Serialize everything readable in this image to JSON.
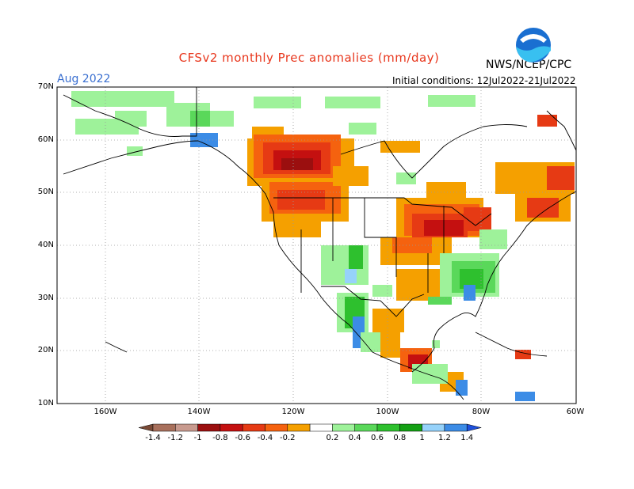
{
  "header": {
    "title": "CFSv2 monthly Prec anomalies (mm/day)",
    "agency": "NWS/NCEP/CPC",
    "month": "Aug 2022",
    "initial_conditions": "Initial conditions: 12Jul2022-21Jul2022",
    "logo_text": "NOAA"
  },
  "axes": {
    "lat_labels": [
      "70N",
      "60N",
      "50N",
      "40N",
      "30N",
      "20N",
      "10N"
    ],
    "lon_labels": [
      "160W",
      "140W",
      "120W",
      "100W",
      "80W",
      "60W"
    ]
  },
  "colorbar": {
    "labels": [
      "-1.4",
      "-1.2",
      "-1",
      "-0.8",
      "-0.6",
      "-0.4",
      "-0.2",
      "0.2",
      "0.4",
      "0.6",
      "0.8",
      "1",
      "1.2",
      "1.4"
    ],
    "colors": [
      "#7a4a36",
      "#a8705c",
      "#c89a8e",
      "#9b0f0f",
      "#c41010",
      "#e63a14",
      "#f5620f",
      "#f5a000",
      "#ffffff",
      "#9ef29a",
      "#5ad85a",
      "#2ec02e",
      "#14a014",
      "#96d2fa",
      "#3c8ce6",
      "#1e50dc"
    ]
  },
  "colors": {
    "title": "#e8361c",
    "month": "#3a6fd0",
    "dry_strong": "#9b0f0f",
    "dry": "#e63a14",
    "dry_light": "#f5a000",
    "wet_light": "#9ef29a",
    "wet": "#2ec02e",
    "wet_strong": "#14a014",
    "very_wet": "#3c8ce6"
  }
}
